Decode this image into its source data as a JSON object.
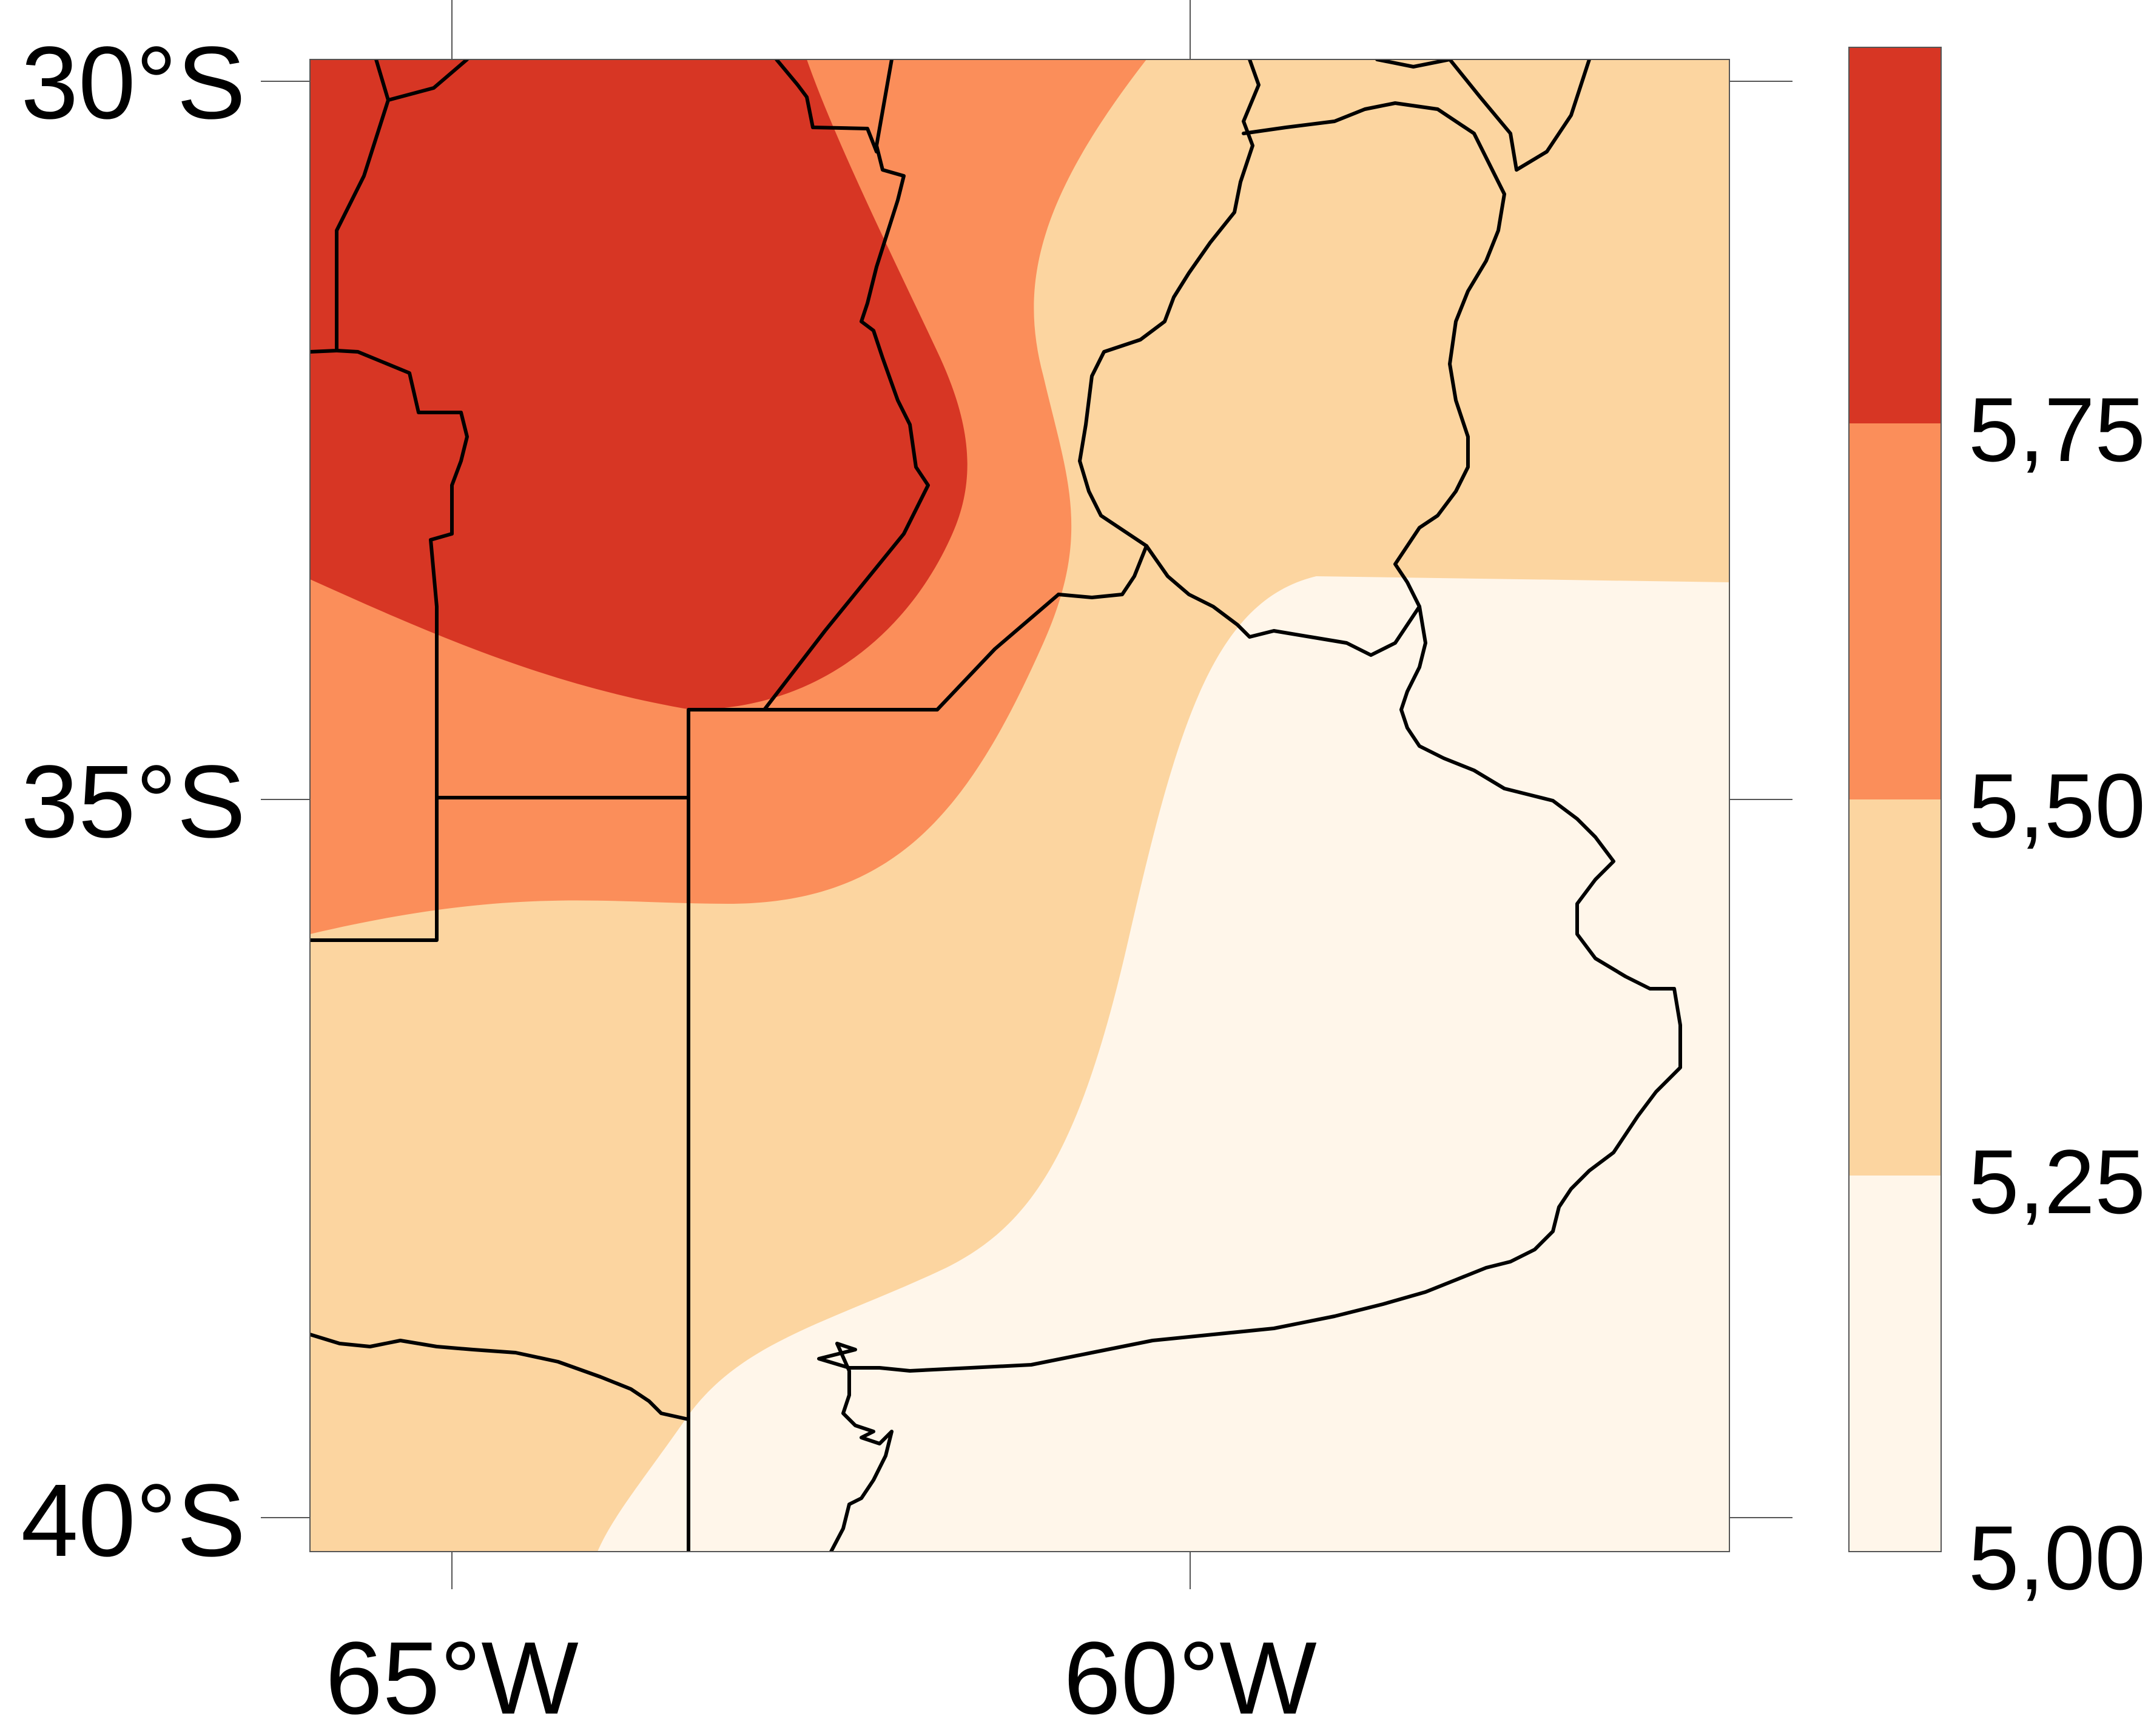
{
  "map": {
    "lat_labels": [
      "30°S",
      "35°S",
      "40°S"
    ],
    "lon_labels": [
      "65°W",
      "60°W"
    ]
  },
  "colorbar": {
    "labels": [
      "5,75",
      "5,50",
      "5,25",
      "5,00"
    ],
    "colors": [
      "#d73624",
      "#fb8e5a",
      "#fcd5a0",
      "#fff6ea"
    ]
  },
  "chart_data": {
    "type": "heatmap",
    "title": "",
    "xlabel": "",
    "ylabel": "",
    "x_ticks": [
      "65°W",
      "60°W"
    ],
    "y_ticks": [
      "30°S",
      "35°S",
      "40°S"
    ],
    "levels": [
      5.0,
      5.25,
      5.5,
      5.75
    ],
    "level_labels": [
      "5,00",
      "5,25",
      "5,50",
      "5,75"
    ],
    "colors": [
      "#fff6ea",
      "#fcd5a0",
      "#fb8e5a",
      "#d73624"
    ],
    "gradient": "values decrease from north-west (above 5,75) to south-east (below 5,25)"
  }
}
